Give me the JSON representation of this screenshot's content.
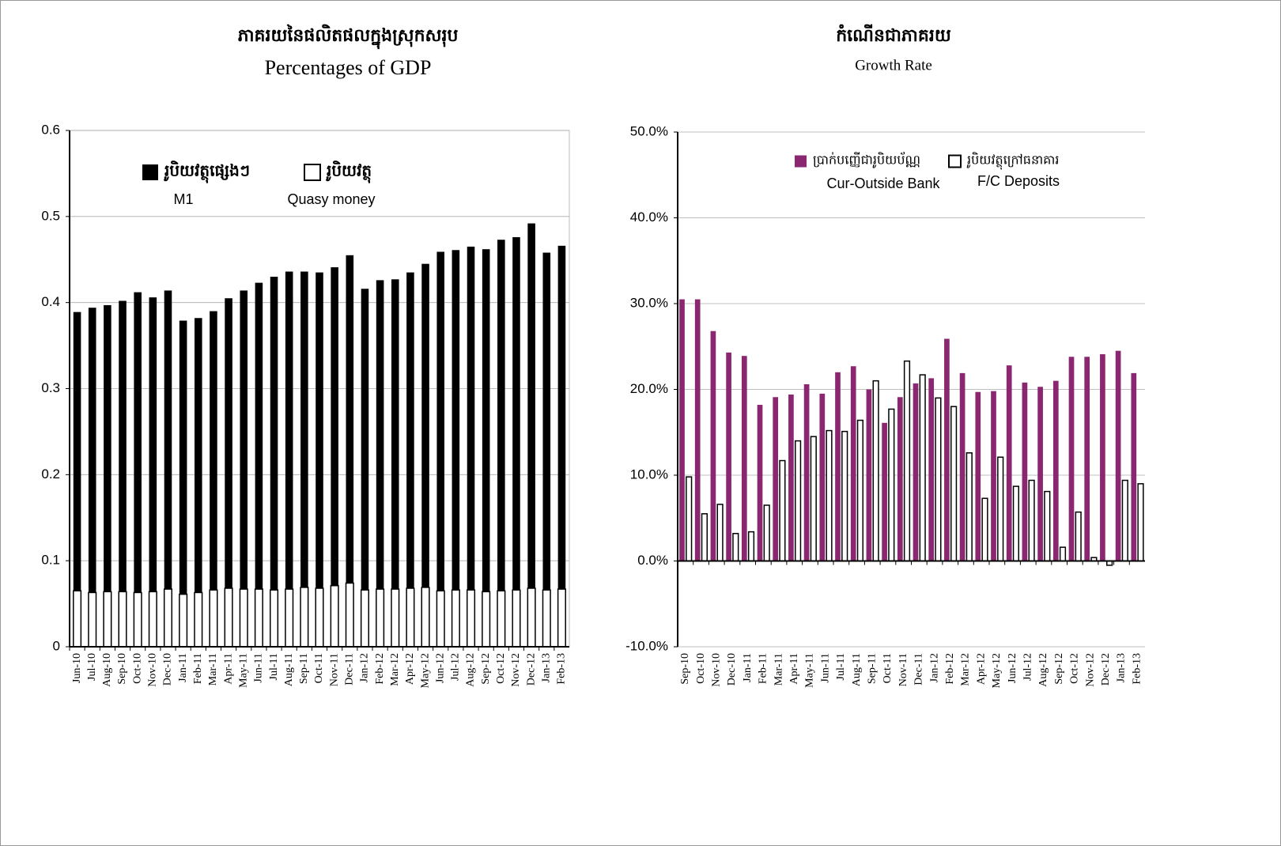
{
  "chart_data": [
    {
      "type": "bar",
      "stacked": true,
      "title": "ភាគរយនៃផលិតផលក្នុងស្រុកសរុប",
      "subtitle": "Percentages of GDP",
      "categories": [
        "Jun-10",
        "Jul-10",
        "Aug-10",
        "Sep-10",
        "Oct-10",
        "Nov-10",
        "Dec-10",
        "Jan-11",
        "Feb-11",
        "Mar-11",
        "Apr-11",
        "May-11",
        "Jun-11",
        "Jul-11",
        "Aug-11",
        "Sep-11",
        "Oct-11",
        "Nov-11",
        "Dec-11",
        "Jan-12",
        "Feb-12",
        "Mar-12",
        "Apr-12",
        "May-12",
        "Jun-12",
        "Jul-12",
        "Aug-12",
        "Sep-12",
        "Oct-12",
        "Nov-12",
        "Dec-12",
        "Jan-13",
        "Feb-13"
      ],
      "series": [
        {
          "name": "រូបិយវត្ថុ",
          "label_en": "Quasy money",
          "color": "#ffffff",
          "values": [
            0.065,
            0.063,
            0.064,
            0.064,
            0.063,
            0.064,
            0.067,
            0.061,
            0.063,
            0.066,
            0.068,
            0.067,
            0.067,
            0.066,
            0.067,
            0.069,
            0.068,
            0.071,
            0.074,
            0.066,
            0.067,
            0.067,
            0.068,
            0.069,
            0.065,
            0.066,
            0.066,
            0.064,
            0.065,
            0.066,
            0.068,
            0.066,
            0.067
          ]
        },
        {
          "name": "រូបិយវត្ថុផ្សេងៗ",
          "label_en": "M1",
          "color": "#000000",
          "values": [
            0.324,
            0.331,
            0.333,
            0.338,
            0.349,
            0.342,
            0.347,
            0.318,
            0.319,
            0.324,
            0.337,
            0.347,
            0.356,
            0.364,
            0.369,
            0.367,
            0.367,
            0.37,
            0.381,
            0.35,
            0.359,
            0.36,
            0.367,
            0.376,
            0.394,
            0.395,
            0.399,
            0.398,
            0.408,
            0.41,
            0.424,
            0.392,
            0.399
          ]
        }
      ],
      "ylim": [
        0,
        0.6
      ],
      "yticks": [
        0,
        0.1,
        0.2,
        0.3,
        0.4,
        0.5,
        0.6
      ],
      "grid": true
    },
    {
      "type": "bar",
      "stacked": false,
      "title": "កំណើនជាភាគរយ",
      "subtitle": "Growth Rate",
      "categories": [
        "Sep-10",
        "Oct-10",
        "Nov-10",
        "Dec-10",
        "Jan-11",
        "Feb-11",
        "Mar-11",
        "Apr-11",
        "May-11",
        "Jun-11",
        "Jul-11",
        "Aug-11",
        "Sep-11",
        "Oct-11",
        "Nov-11",
        "Dec-11",
        "Jan-12",
        "Feb-12",
        "Mar-12",
        "Apr-12",
        "May-12",
        "Jun-12",
        "Jul-12",
        "Aug-12",
        "Sep-12",
        "Oct-12",
        "Nov-12",
        "Dec-12",
        "Jan-13",
        "Feb-13"
      ],
      "series": [
        {
          "name": "ប្រាក់បញ្ញើជារូបិយប័ណ្ណ",
          "label_en": "Cur-Outside Bank",
          "color": "#8b2770",
          "values": [
            30.5,
            30.5,
            26.8,
            24.3,
            23.9,
            18.2,
            19.1,
            19.4,
            20.6,
            19.5,
            22.0,
            22.7,
            20.0,
            16.1,
            19.1,
            20.7,
            21.3,
            25.9,
            21.9,
            19.7,
            19.8,
            22.8,
            20.8,
            20.3,
            21.0,
            23.8,
            23.8,
            24.1,
            24.5,
            21.9
          ]
        },
        {
          "name": "រូបិយវត្ថុក្រៅធនាគារ",
          "label_en": "F/C Deposits",
          "color": "#ffffff",
          "values": [
            9.8,
            5.5,
            6.6,
            3.2,
            3.4,
            6.5,
            11.7,
            14.0,
            14.5,
            15.2,
            15.1,
            16.4,
            21.0,
            17.7,
            23.3,
            21.7,
            19.0,
            18.0,
            12.6,
            7.3,
            12.1,
            8.7,
            9.4,
            8.1,
            1.6,
            5.7,
            0.4,
            -0.5,
            9.4,
            9.0
          ]
        }
      ],
      "ylim": [
        -10,
        50
      ],
      "yticks": [
        {
          "value": -10,
          "label": "-10.0%"
        },
        {
          "value": 0,
          "label": "0.0%"
        },
        {
          "value": 10,
          "label": "10.0%"
        },
        {
          "value": 20,
          "label": "20.0%"
        },
        {
          "value": 30,
          "label": "30.0%"
        },
        {
          "value": 40,
          "label": "40.0%"
        },
        {
          "value": 50,
          "label": "50.0%"
        }
      ],
      "grid": true
    }
  ]
}
